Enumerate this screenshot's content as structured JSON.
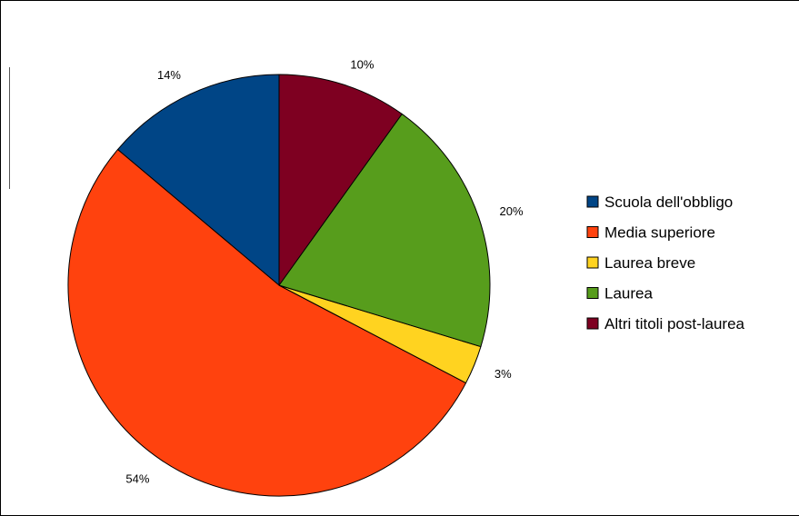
{
  "chart_data": {
    "type": "pie",
    "title": "",
    "slices": [
      {
        "label": "Scuola dell'obbligo",
        "value": 14,
        "display": "14%",
        "color": "#004586"
      },
      {
        "label": "Media superiore",
        "value": 54,
        "display": "54%",
        "color": "#FF420E"
      },
      {
        "label": "Laurea breve",
        "value": 3,
        "display": "3%",
        "color": "#FFD320"
      },
      {
        "label": "Laurea",
        "value": 20,
        "display": "20%",
        "color": "#579D1C"
      },
      {
        "label": "Altri titoli post-laurea",
        "value": 10,
        "display": "10%",
        "color": "#7E0021"
      }
    ],
    "legend_position": "right",
    "start": "top",
    "direction": "counterclockwise"
  }
}
